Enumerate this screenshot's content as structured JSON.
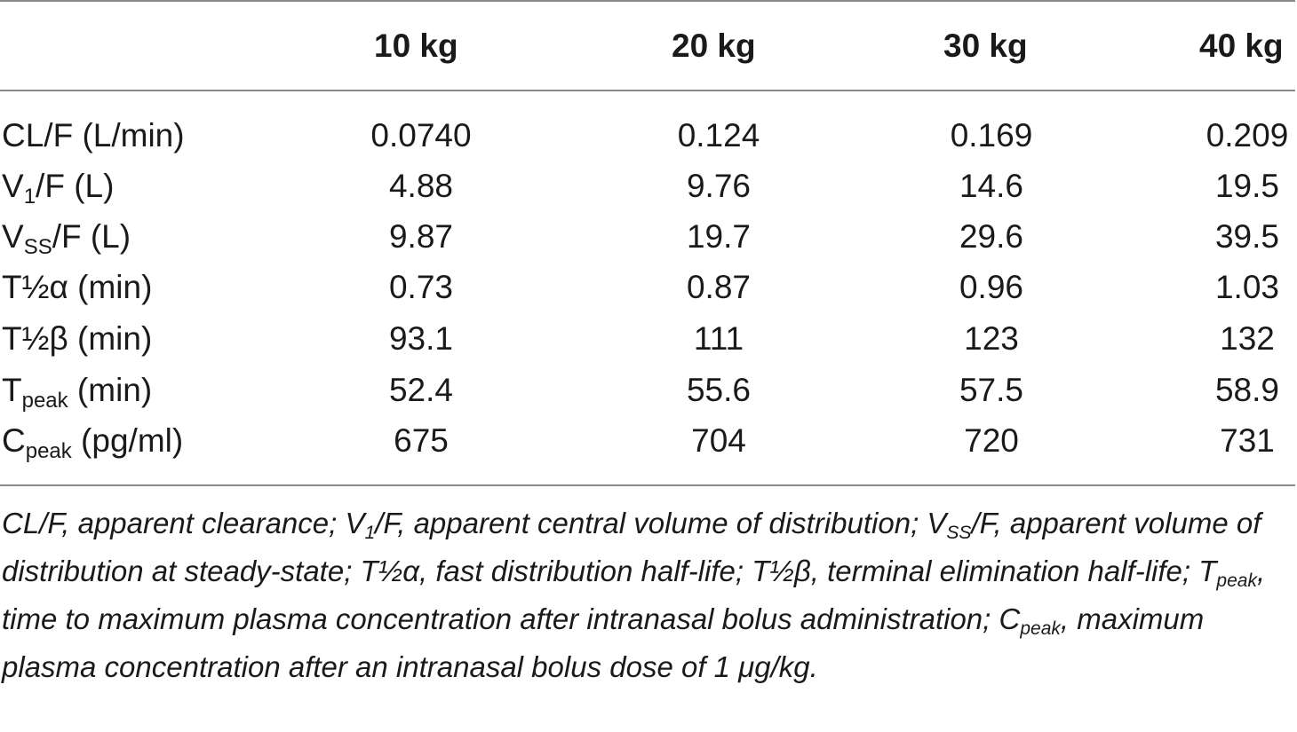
{
  "table": {
    "headers": [
      "10 kg",
      "20 kg",
      "30 kg",
      "40 kg"
    ],
    "rows": [
      {
        "label_main": "CL/F (L/min)",
        "label_sub": "",
        "label_tail": "",
        "values": [
          "0.0740",
          "0.124",
          "0.169",
          "0.209"
        ]
      },
      {
        "label_main": "V",
        "label_sub": "1",
        "label_tail": "/F (L)",
        "values": [
          "4.88",
          "9.76",
          "14.6",
          "19.5"
        ]
      },
      {
        "label_main": "V",
        "label_sub": "SS",
        "label_tail": "/F (L)",
        "values": [
          "9.87",
          "19.7",
          "29.6",
          "39.5"
        ]
      },
      {
        "label_main": "T½α (min)",
        "label_sub": "",
        "label_tail": "",
        "values": [
          "0.73",
          "0.87",
          "0.96",
          "1.03"
        ]
      },
      {
        "label_main": "T½β (min)",
        "label_sub": "",
        "label_tail": "",
        "values": [
          "93.1",
          "111",
          "123",
          "132"
        ]
      },
      {
        "label_main": "T",
        "label_sub": "peak",
        "label_tail": " (min)",
        "values": [
          "52.4",
          "55.6",
          "57.5",
          "58.9"
        ]
      },
      {
        "label_main": "C",
        "label_sub": "peak",
        "label_tail": " (pg/ml)",
        "values": [
          "675",
          "704",
          "720",
          "731"
        ]
      }
    ]
  },
  "footnote": {
    "p1": "CL/F, apparent clearance; V",
    "s1": "1",
    "p2": "/F, apparent central volume of distribution; V",
    "s2": "SS",
    "p3": "/F, apparent volume of distribution at steady-state; T½α, fast distribution half-life; T½β, terminal elimination half-life; T",
    "s3": "peak",
    "p4": ", time to maximum plasma concentration after intranasal bolus administration; C",
    "s4": "peak",
    "p5": ", maximum plasma concentration after an intranasal bolus dose of 1 μg/kg."
  }
}
